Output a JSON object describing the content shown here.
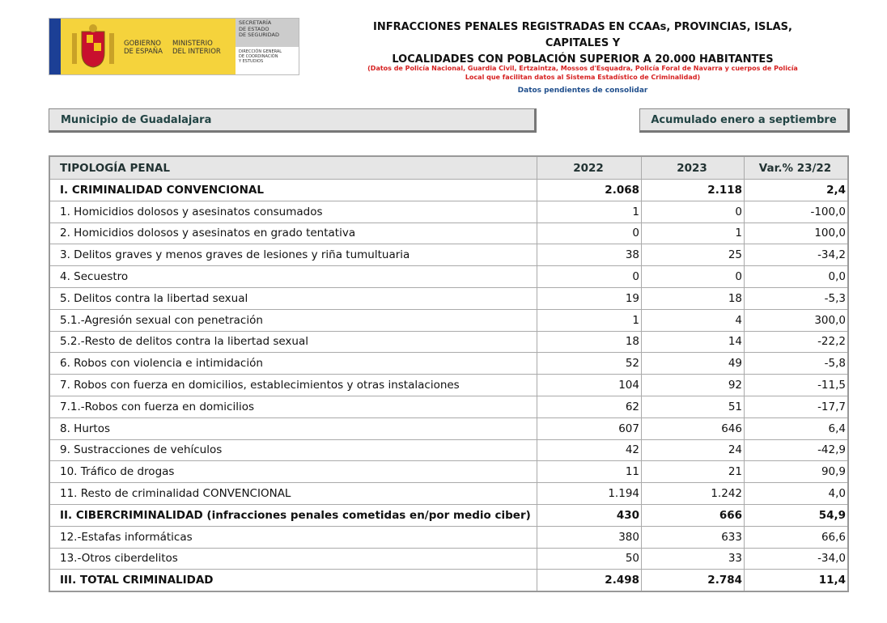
{
  "logo": {
    "gobierno": [
      "GOBIERNO",
      "DE ESPAÑA"
    ],
    "ministerio": [
      "MINISTERIO",
      "DEL INTERIOR"
    ],
    "secretaria": [
      "SECRETARÍA",
      "DE ESTADO",
      "DE SEGURIDAD"
    ],
    "direccion": [
      "DIRECCIÓN GENERAL",
      "DE COORDINACIÓN",
      "Y ESTUDIOS"
    ]
  },
  "header": {
    "title": [
      "INFRACCIONES PENALES REGISTRADAS EN CCAAs, PROVINCIAS, ISLAS, CAPITALES Y",
      "LOCALIDADES CON POBLACIÓN SUPERIOR A 20.000 HABITANTES"
    ],
    "subtitle": [
      "(Datos de Policía Nacional, Guardia Civil, Ertzaintza, Mossos d'Esquadra, Policía Foral de Navarra y cuerpos de Policía",
      "Local que facilitan datos al Sistema Estadístico de Criminalidad)"
    ],
    "note": "Datos pendientes de consolidar",
    "municipio": "Municipio de Guadalajara",
    "periodo": "Acumulado enero a septiembre"
  },
  "table": {
    "columns": [
      "TIPOLOGÍA PENAL",
      "2022",
      "2023",
      "Var.% 23/22"
    ],
    "rows": [
      {
        "cells": [
          "I. CRIMINALIDAD CONVENCIONAL",
          "2.068",
          "2.118",
          "2,4"
        ],
        "bold": true
      },
      {
        "cells": [
          "1. Homicidios dolosos y asesinatos consumados",
          "1",
          "0",
          "-100,0"
        ]
      },
      {
        "cells": [
          "2. Homicidios dolosos y asesinatos en grado tentativa",
          "0",
          "1",
          "100,0"
        ]
      },
      {
        "cells": [
          "3. Delitos graves y menos graves de lesiones y riña tumultuaria",
          "38",
          "25",
          "-34,2"
        ]
      },
      {
        "cells": [
          "4. Secuestro",
          "0",
          "0",
          "0,0"
        ]
      },
      {
        "cells": [
          "5. Delitos contra la libertad sexual",
          "19",
          "18",
          "-5,3"
        ]
      },
      {
        "cells": [
          "5.1.-Agresión sexual con penetración",
          "1",
          "4",
          "300,0"
        ]
      },
      {
        "cells": [
          "5.2.-Resto de delitos contra la libertad sexual",
          "18",
          "14",
          "-22,2"
        ]
      },
      {
        "cells": [
          "6. Robos con violencia e intimidación",
          "52",
          "49",
          "-5,8"
        ]
      },
      {
        "cells": [
          "7. Robos con fuerza en domicilios, establecimientos y otras instalaciones",
          "104",
          "92",
          "-11,5"
        ]
      },
      {
        "cells": [
          "7.1.-Robos con fuerza en domicilios",
          "62",
          "51",
          "-17,7"
        ]
      },
      {
        "cells": [
          "8. Hurtos",
          "607",
          "646",
          "6,4"
        ]
      },
      {
        "cells": [
          "9. Sustracciones de vehículos",
          "42",
          "24",
          "-42,9"
        ]
      },
      {
        "cells": [
          "10. Tráfico de drogas",
          "11",
          "21",
          "90,9"
        ]
      },
      {
        "cells": [
          "11. Resto de criminalidad CONVENCIONAL",
          "1.194",
          "1.242",
          "4,0"
        ]
      },
      {
        "cells": [
          "II. CIBERCRIMINALIDAD (infracciones penales cometidas en/por medio ciber)",
          "430",
          "666",
          "54,9"
        ],
        "bold": true
      },
      {
        "cells": [
          "12.-Estafas informáticas",
          "380",
          "633",
          "66,6"
        ]
      },
      {
        "cells": [
          "13.-Otros ciberdelitos",
          "50",
          "33",
          "-34,0"
        ]
      },
      {
        "cells": [
          "III. TOTAL CRIMINALIDAD",
          "2.498",
          "2.784",
          "11,4"
        ],
        "bold": true
      }
    ]
  }
}
